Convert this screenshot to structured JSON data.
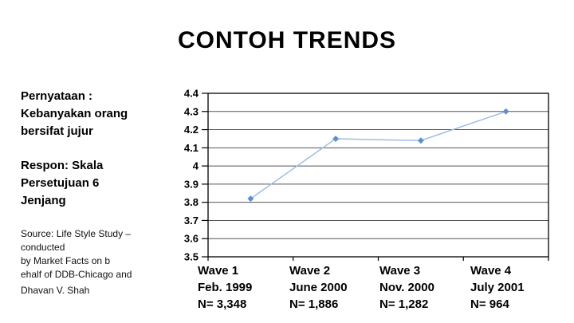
{
  "slide": {
    "title": "CONTOH TRENDS",
    "background_color": "#ffffff",
    "text_color": "#000000"
  },
  "sidebar": {
    "statement": "Pernyataan :\nKebanyakan orang\nbersifat jujur",
    "response": "Respon: Skala\nPersetujuan 6\nJenjang",
    "source": {
      "lines": [
        "Source: Life Style Study –",
        "conducted",
        "by Market Facts on b",
        "ehalf of DDB-Chicago and",
        "Dhavan V. Shah"
      ]
    }
  },
  "chart_data": {
    "type": "line",
    "title": "",
    "xlabel": "",
    "ylabel": "",
    "categories": [
      "Wave 1",
      "Wave 2",
      "Wave 3",
      "Wave 4"
    ],
    "values": [
      3.82,
      4.15,
      4.14,
      4.3
    ],
    "x_labels": [
      {
        "wave": "Wave 1",
        "date": "Feb. 1999",
        "n": "N= 3,348"
      },
      {
        "wave": "Wave 2",
        "date": "June 2000",
        "n": "N= 1,886"
      },
      {
        "wave": "Wave 3",
        "date": "Nov. 2000",
        "n": "N= 1,282"
      },
      {
        "wave": "Wave 4",
        "date": "July 2001",
        "n": "N= 964"
      }
    ],
    "ylim": [
      3.5,
      4.4
    ],
    "y_ticks": [
      "4.4",
      "4.3",
      "4.2",
      "4.1",
      "4",
      "3.9",
      "3.8",
      "3.7",
      "3.6",
      "3.5"
    ],
    "y_tick_values": [
      4.4,
      4.3,
      4.2,
      4.1,
      4.0,
      3.9,
      3.8,
      3.7,
      3.6,
      3.5
    ],
    "grid": true,
    "legend": "none",
    "line_color": "#9dbde4",
    "marker_color": "#5e8fce",
    "grid_color": "#555555",
    "axis_color": "#000000"
  }
}
